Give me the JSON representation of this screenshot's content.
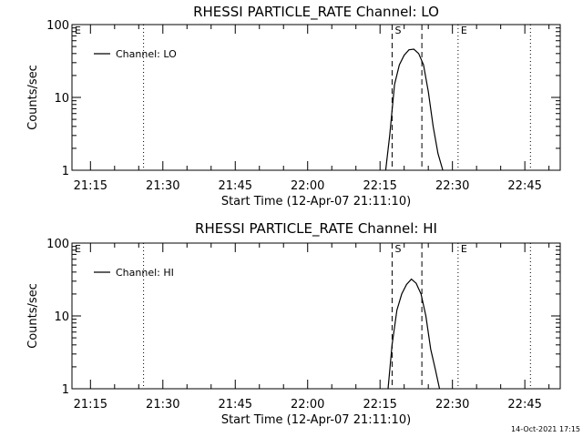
{
  "footer_timestamp": "14-Oct-2021 17:15",
  "chart_data": [
    {
      "type": "line",
      "title": "RHESSI PARTICLE_RATE Channel: LO",
      "xlabel": "Start Time (12-Apr-07 21:11:10)",
      "ylabel": "Counts/sec",
      "yscale": "log",
      "ylim": [
        1,
        100
      ],
      "xlim": [
        "21:11:10",
        "22:52:20"
      ],
      "y_tick_labels": [
        "1",
        "10",
        "100"
      ],
      "x_tick_labels": [
        "21:15",
        "21:30",
        "21:45",
        "22:00",
        "22:15",
        "22:30",
        "22:45"
      ],
      "grid": false,
      "legend_position": "top-left",
      "series": [
        {
          "name": "Channel: LO",
          "x": [
            "22:16:10",
            "22:17:00",
            "22:18:00",
            "22:19:00",
            "22:20:00",
            "22:21:00",
            "22:22:00",
            "22:23:00",
            "22:24:00",
            "22:25:00",
            "22:26:00",
            "22:27:00",
            "22:28:00"
          ],
          "y": [
            1,
            3,
            15,
            28,
            38,
            45,
            46,
            40,
            28,
            12,
            4,
            1.7,
            1
          ]
        }
      ],
      "markers": [
        {
          "label": "E",
          "time": "21:11:10",
          "style": "dotted"
        },
        {
          "label": "",
          "time": "21:26:00",
          "style": "dotted"
        },
        {
          "label": "S",
          "time": "22:17:30",
          "style": "dashed"
        },
        {
          "label": "",
          "time": "22:23:40",
          "style": "dashed"
        },
        {
          "label": "E",
          "time": "22:31:10",
          "style": "dotted"
        },
        {
          "label": "",
          "time": "22:46:10",
          "style": "dotted"
        }
      ]
    },
    {
      "type": "line",
      "title": "RHESSI PARTICLE_RATE Channel: HI",
      "xlabel": "Start Time (12-Apr-07 21:11:10)",
      "ylabel": "Counts/sec",
      "yscale": "log",
      "ylim": [
        1,
        100
      ],
      "xlim": [
        "21:11:10",
        "22:52:20"
      ],
      "y_tick_labels": [
        "1",
        "10",
        "100"
      ],
      "x_tick_labels": [
        "21:15",
        "21:30",
        "21:45",
        "22:00",
        "22:15",
        "22:30",
        "22:45"
      ],
      "grid": false,
      "legend_position": "top-left",
      "series": [
        {
          "name": "Channel: HI",
          "x": [
            "22:16:40",
            "22:17:30",
            "22:18:30",
            "22:19:30",
            "22:20:30",
            "22:21:30",
            "22:22:30",
            "22:23:30",
            "22:24:30",
            "22:25:30",
            "22:26:30",
            "22:27:20"
          ],
          "y": [
            1,
            4,
            12,
            20,
            27,
            32,
            28,
            20,
            10,
            3.5,
            1.8,
            1
          ]
        }
      ],
      "markers": [
        {
          "label": "E",
          "time": "21:11:10",
          "style": "dotted"
        },
        {
          "label": "",
          "time": "21:26:00",
          "style": "dotted"
        },
        {
          "label": "S",
          "time": "22:17:30",
          "style": "dashed"
        },
        {
          "label": "",
          "time": "22:23:40",
          "style": "dashed"
        },
        {
          "label": "E",
          "time": "22:31:10",
          "style": "dotted"
        },
        {
          "label": "",
          "time": "22:46:10",
          "style": "dotted"
        }
      ]
    }
  ]
}
